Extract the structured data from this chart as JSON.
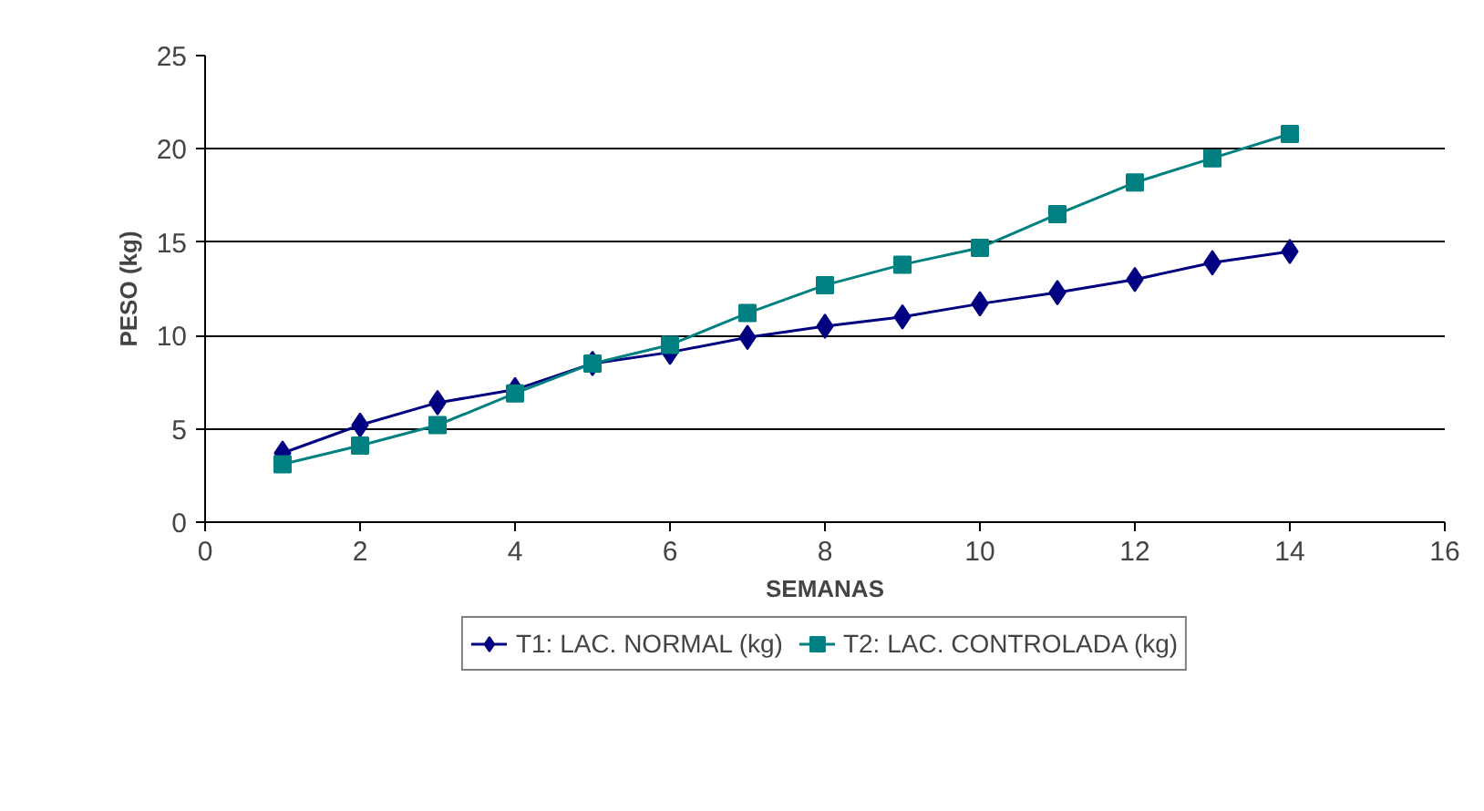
{
  "chart_data": {
    "type": "line",
    "xlabel": "SEMANAS",
    "ylabel": "PESO (kg)",
    "xlim": [
      0,
      16
    ],
    "xticks": [
      0,
      2,
      4,
      6,
      8,
      10,
      12,
      14,
      16
    ],
    "ylim": [
      0,
      25
    ],
    "yticks": [
      0,
      5,
      10,
      15,
      20,
      25
    ],
    "grid": "y",
    "legend": "bottom",
    "line_style": "solid",
    "series": [
      {
        "name": "T1: LAC. NORMAL (kg)",
        "color": "#000080",
        "marker": "diamond",
        "x": [
          1,
          2,
          3,
          4,
          5,
          6,
          7,
          8,
          9,
          10,
          11,
          12,
          13,
          14
        ],
        "values": [
          3.7,
          5.2,
          6.4,
          7.1,
          8.5,
          9.1,
          9.9,
          10.5,
          11.0,
          11.7,
          12.3,
          13.0,
          13.9,
          14.5
        ]
      },
      {
        "name": "T2: LAC. CONTROLADA (kg)",
        "color": "#008080",
        "marker": "square",
        "x": [
          1,
          2,
          3,
          4,
          5,
          6,
          7,
          8,
          9,
          10,
          11,
          12,
          13,
          14
        ],
        "values": [
          3.1,
          4.1,
          5.2,
          6.9,
          8.5,
          9.5,
          11.2,
          12.7,
          13.8,
          14.7,
          16.5,
          18.2,
          19.5,
          20.8
        ]
      }
    ]
  }
}
